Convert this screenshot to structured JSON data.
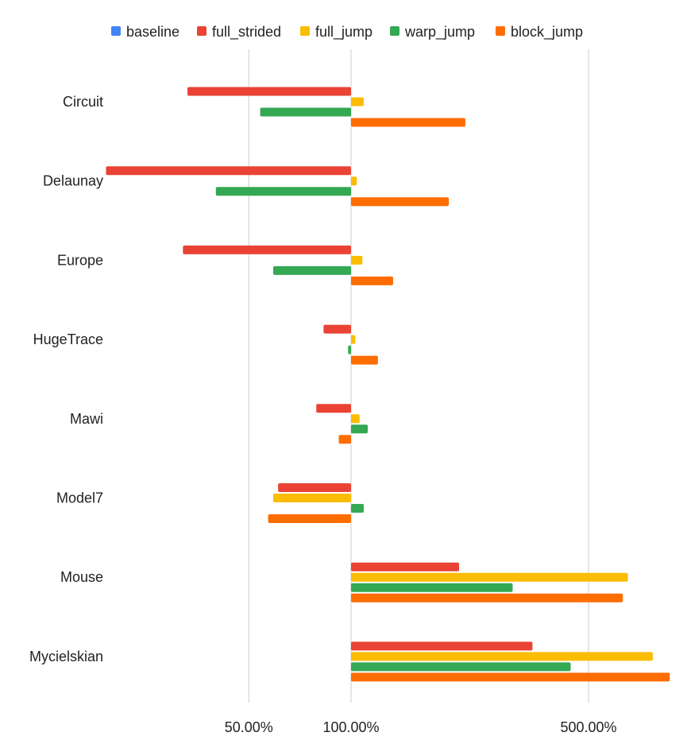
{
  "chart_data": {
    "type": "bar",
    "orientation": "horizontal",
    "x_scale": "log",
    "grid": true,
    "legend_position": "top",
    "categories": [
      "Circuit",
      "Delaunay",
      "Europe",
      "HugeTrace",
      "Mawi",
      "Model7",
      "Mouse",
      "Mycielskian"
    ],
    "series": [
      {
        "name": "baseline",
        "color": "#4285F4",
        "values": [
          1.0,
          1.0,
          1.0,
          1.0,
          1.0,
          1.0,
          1.0,
          1.0
        ]
      },
      {
        "name": "full_strided",
        "color": "#EA4335",
        "values": [
          0.33,
          0.19,
          0.32,
          0.83,
          0.79,
          0.61,
          2.08,
          3.42
        ]
      },
      {
        "name": "full_jump",
        "color": "#FBBC04",
        "values": [
          1.09,
          1.04,
          1.08,
          1.03,
          1.06,
          0.59,
          6.53,
          7.73
        ]
      },
      {
        "name": "warp_jump",
        "color": "#34A853",
        "values": [
          0.54,
          0.4,
          0.59,
          0.98,
          1.12,
          1.09,
          2.99,
          4.43
        ]
      },
      {
        "name": "block_jump",
        "color": "#FF6D01",
        "values": [
          2.17,
          1.94,
          1.33,
          1.2,
          0.92,
          0.57,
          6.31,
          8.67
        ]
      }
    ],
    "x_ticks": [
      {
        "value": 0.5,
        "label": "50.00%"
      },
      {
        "value": 1.0,
        "label": "100.00%"
      },
      {
        "value": 5.0,
        "label": "500.00%"
      }
    ]
  }
}
